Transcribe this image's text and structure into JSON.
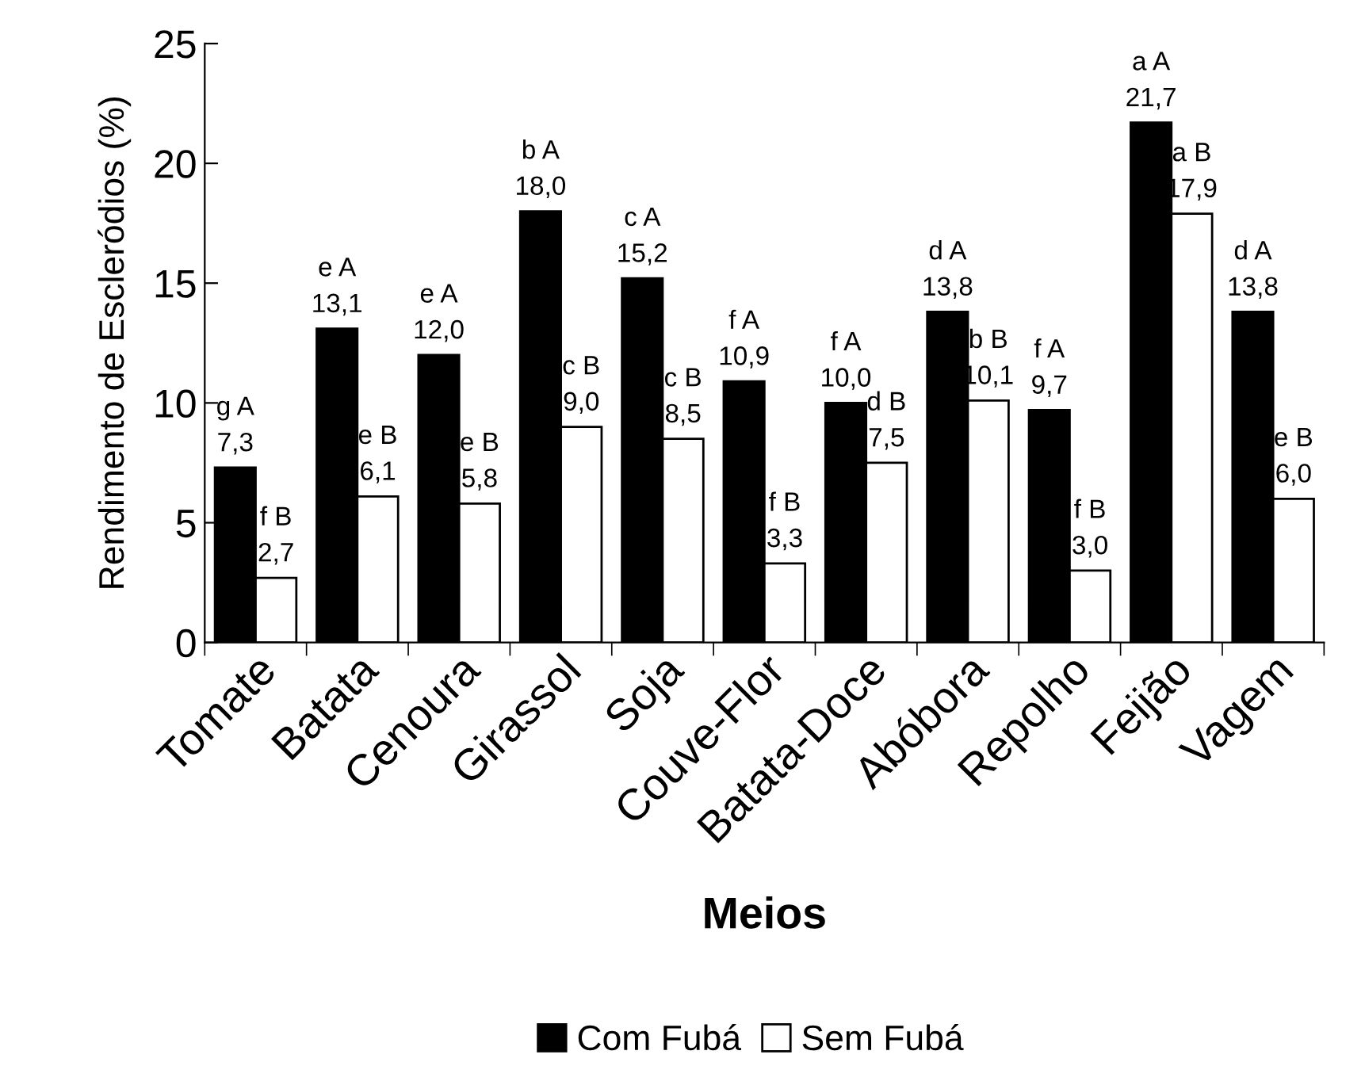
{
  "chart_data": {
    "type": "bar",
    "xlabel": "Meios",
    "ylabel": "Rendimento de Escleródios (%)",
    "categories": [
      "Tomate",
      "Batata",
      "Cenoura",
      "Girassol",
      "Soja",
      "Couve-Flor",
      "Batata-Doce",
      "Abóbora",
      "Repolho",
      "Feijão",
      "Vagem"
    ],
    "series": [
      {
        "name": "Com Fubá",
        "color": "#000000",
        "values": [
          7.3,
          13.1,
          12.0,
          18.0,
          15.2,
          10.9,
          10.0,
          13.8,
          9.7,
          21.7,
          13.8
        ],
        "value_labels": [
          "g A\n7,3",
          "e A\n13,1",
          "e A\n12,0",
          "b A\n18,0",
          "c A\n15,2",
          "f A\n10,9",
          "f A\n10,0",
          "d A\n13,8",
          "f A\n9,7",
          "a A\n21,7",
          "d A\n13,8"
        ]
      },
      {
        "name": "Sem Fubá",
        "color": "#ffffff",
        "values": [
          2.7,
          6.1,
          5.8,
          9.0,
          8.5,
          3.3,
          7.5,
          10.1,
          3.0,
          17.9,
          6.0
        ],
        "value_labels": [
          "f B\n2,7",
          "e B\n6,1",
          "e B\n5,8",
          "c B\n9,0",
          "c B\n8,5",
          "f B\n3,3",
          "d B\n7,5",
          "b B\n10,1",
          "f B\n3,0",
          "a B\n17,9",
          "e B\n6,0"
        ]
      }
    ],
    "ylim": [
      0,
      25
    ],
    "yticks": [
      0,
      5,
      10,
      15,
      20,
      25
    ],
    "grid": false,
    "legend": "bottom"
  }
}
